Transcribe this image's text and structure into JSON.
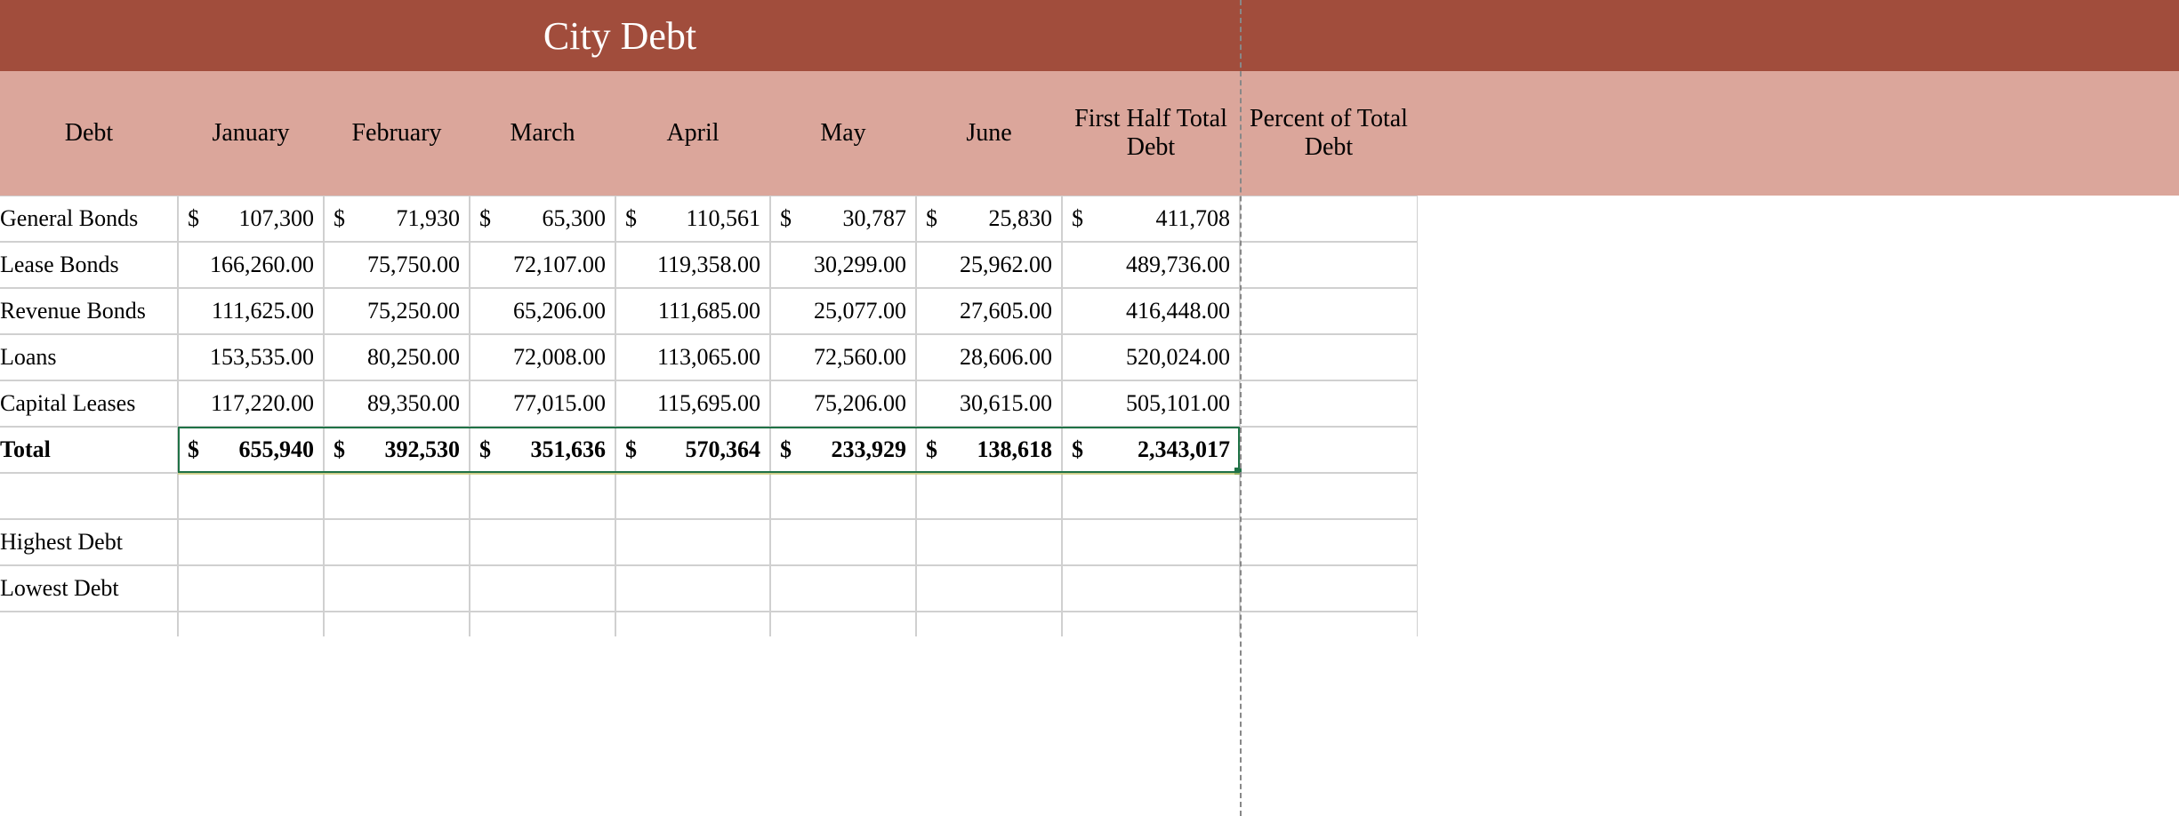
{
  "colors": {
    "title_bg": "#a14d3c",
    "title_fg": "#ffffff",
    "header_bg": "#dba69b",
    "header_fg": "#000000",
    "grid": "#d0d0d0",
    "selection": "#1f7246",
    "avg_line": "#c9c96a",
    "page_break": "#888888"
  },
  "title": "City Debt",
  "columns": [
    "Debt",
    "January",
    "February",
    "March",
    "April",
    "May",
    "June",
    "First Half Total Debt",
    "Percent of Total Debt"
  ],
  "rows": [
    {
      "label": "General Bonds",
      "format": "currency_int",
      "cells": [
        "107,300",
        "71,930",
        "65,300",
        "110,561",
        "30,787",
        "25,830",
        "411,708"
      ]
    },
    {
      "label": "Lease Bonds",
      "format": "number_2dp",
      "cells": [
        "166,260.00",
        "75,750.00",
        "72,107.00",
        "119,358.00",
        "30,299.00",
        "25,962.00",
        "489,736.00"
      ]
    },
    {
      "label": "Revenue Bonds",
      "format": "number_2dp",
      "cells": [
        "111,625.00",
        "75,250.00",
        "65,206.00",
        "111,685.00",
        "25,077.00",
        "27,605.00",
        "416,448.00"
      ]
    },
    {
      "label": "Loans",
      "format": "number_2dp",
      "cells": [
        "153,535.00",
        "80,250.00",
        "72,008.00",
        "113,065.00",
        "72,560.00",
        "28,606.00",
        "520,024.00"
      ]
    },
    {
      "label": "Capital Leases",
      "format": "number_2dp",
      "cells": [
        "117,220.00",
        "89,350.00",
        "77,015.00",
        "115,695.00",
        "75,206.00",
        "30,615.00",
        "505,101.00"
      ]
    }
  ],
  "total": {
    "label": "Total",
    "format": "currency_int_bold",
    "cells": [
      "655,940",
      "392,530",
      "351,636",
      "570,364",
      "233,929",
      "138,618",
      "2,343,017"
    ]
  },
  "footer_labels": [
    "Highest Debt",
    "Lowest Debt"
  ],
  "partial_bottom_label": ""
}
